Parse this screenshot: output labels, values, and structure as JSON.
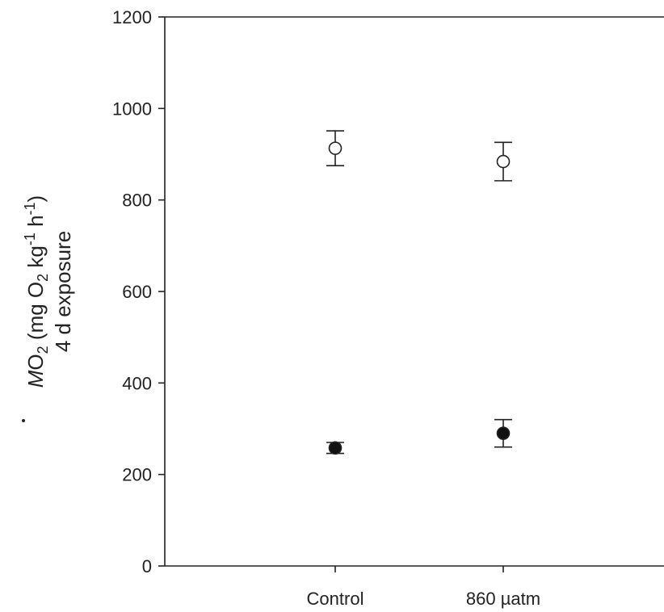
{
  "chart_data": {
    "type": "scatter",
    "categories": [
      "Control",
      "860 µatm"
    ],
    "ylim": [
      0,
      1200
    ],
    "yticks": [
      0,
      200,
      400,
      600,
      800,
      1000,
      1200
    ],
    "ylabel": {
      "line1": {
        "m": "M",
        "o": "O",
        "o_sub": "2",
        "open": " (mg O",
        "o2_sub": "2",
        "kg": " kg",
        "kg_sup": "-1",
        "h": " h",
        "h_sup": "-1",
        "close": ")"
      },
      "line2": "4 d exposure"
    },
    "grid": false,
    "series": [
      {
        "marker": "open-circle",
        "values": [
          913,
          884
        ],
        "error": [
          38,
          42
        ]
      },
      {
        "marker": "filled-circle",
        "values": [
          258,
          290
        ],
        "error": [
          12,
          30
        ]
      }
    ]
  }
}
